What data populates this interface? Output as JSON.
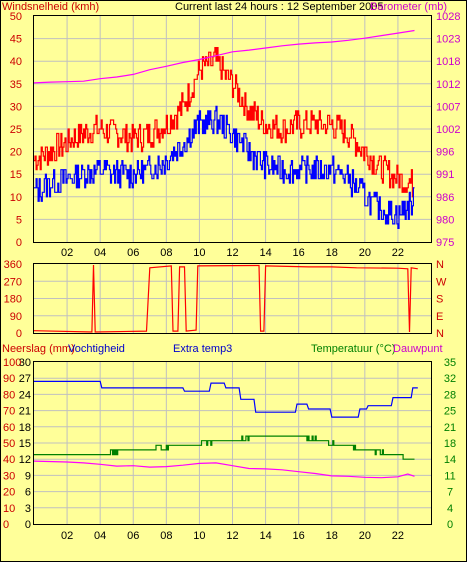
{
  "colors": {
    "background": "#ffff99",
    "gust": "#ff0000",
    "wind": "#0000ff",
    "barometer": "#ff00ff",
    "direction": "#ff0000",
    "humidity": "#0000ff",
    "temperature": "#008000",
    "dewpoint": "#ff00ff",
    "grid": "#c0c0c0",
    "temp_axis": "#008000",
    "right_axis_top": "#cc00cc",
    "right_axis_mid": "#cc0000"
  },
  "header": {
    "left_label": "Windsnelheid (kmh)",
    "center_label": "Current last 24 hours : 12 September 2005",
    "right_label": "Barometer (mb)"
  },
  "chart_data": [
    {
      "type": "line",
      "title": "Current last 24 hours : 12 September 2005",
      "ylabel": "Windsnelheid (kmh)",
      "y2label": "Barometer (mb)",
      "ylim": [
        0,
        50
      ],
      "y2lim": [
        975,
        1028
      ],
      "yticks": [
        "0",
        "5",
        "10",
        "15",
        "20",
        "25",
        "30",
        "35",
        "40",
        "45",
        "50"
      ],
      "y2ticks": [
        "975",
        "980",
        "986",
        "991",
        "996",
        "1002",
        "1007",
        "1012",
        "1018",
        "1023",
        "1028"
      ],
      "xticks": [
        "02",
        "04",
        "06",
        "08",
        "10",
        "12",
        "14",
        "16",
        "18",
        "20",
        "22"
      ],
      "grid": true,
      "series": [
        {
          "key": "gust",
          "points": [
            [
              0,
              18
            ],
            [
              1,
              20
            ],
            [
              2,
              22
            ],
            [
              3,
              24
            ],
            [
              4,
              25
            ],
            [
              5,
              24
            ],
            [
              6,
              23
            ],
            [
              7,
              24
            ],
            [
              8,
              26
            ],
            [
              9,
              30
            ],
            [
              10,
              38
            ],
            [
              11,
              40
            ],
            [
              12,
              35
            ],
            [
              13,
              29
            ],
            [
              14,
              26
            ],
            [
              15,
              25
            ],
            [
              16,
              26
            ],
            [
              17,
              26
            ],
            [
              18,
              26
            ],
            [
              19,
              24
            ],
            [
              20,
              20
            ],
            [
              21,
              16
            ],
            [
              22,
              14
            ],
            [
              23,
              13
            ]
          ]
        },
        {
          "key": "wind",
          "points": [
            [
              0,
              11
            ],
            [
              1,
              13
            ],
            [
              2,
              14
            ],
            [
              3,
              15
            ],
            [
              4,
              16
            ],
            [
              5,
              15
            ],
            [
              6,
              15
            ],
            [
              7,
              16
            ],
            [
              8,
              18
            ],
            [
              9,
              22
            ],
            [
              10,
              26
            ],
            [
              11,
              27
            ],
            [
              12,
              24
            ],
            [
              13,
              20
            ],
            [
              14,
              17
            ],
            [
              15,
              16
            ],
            [
              16,
              16
            ],
            [
              17,
              16
            ],
            [
              18,
              16
            ],
            [
              19,
              14
            ],
            [
              20,
              10
            ],
            [
              21,
              7
            ],
            [
              22,
              6
            ],
            [
              23,
              9
            ]
          ]
        },
        {
          "key": "barometer",
          "points": [
            [
              0,
              1012.3
            ],
            [
              1,
              1012.5
            ],
            [
              2,
              1012.6
            ],
            [
              3,
              1012.7
            ],
            [
              4,
              1013.3
            ],
            [
              5,
              1013.7
            ],
            [
              6,
              1014.3
            ],
            [
              7,
              1015.4
            ],
            [
              8,
              1016.2
            ],
            [
              9,
              1017.1
            ],
            [
              10,
              1017.8
            ],
            [
              11,
              1018.7
            ],
            [
              12,
              1019.6
            ],
            [
              13,
              1020.0
            ],
            [
              14,
              1020.5
            ],
            [
              15,
              1021.0
            ],
            [
              16,
              1021.4
            ],
            [
              17,
              1021.7
            ],
            [
              18,
              1021.9
            ],
            [
              19,
              1022.3
            ],
            [
              20,
              1022.8
            ],
            [
              21,
              1023.4
            ],
            [
              22,
              1024.0
            ],
            [
              23,
              1024.6
            ]
          ]
        }
      ]
    },
    {
      "type": "line",
      "ylim": [
        0,
        360
      ],
      "yticks": [
        "0",
        "90",
        "180",
        "270",
        "360"
      ],
      "y2ticks": [
        "N",
        "E",
        "S",
        "W",
        "N"
      ],
      "xticks": [
        "02",
        "04",
        "06",
        "08",
        "10",
        "12",
        "14",
        "16",
        "18",
        "20",
        "22"
      ],
      "grid": true,
      "series": [
        {
          "key": "direction",
          "points": [
            [
              0,
              12
            ],
            [
              3.5,
              5
            ],
            [
              3.6,
              355
            ],
            [
              3.7,
              5
            ],
            [
              6.8,
              10
            ],
            [
              7.0,
              340
            ],
            [
              8.3,
              350
            ],
            [
              8.4,
              10
            ],
            [
              8.7,
              10
            ],
            [
              8.8,
              345
            ],
            [
              9.1,
              345
            ],
            [
              9.2,
              10
            ],
            [
              9.8,
              15
            ],
            [
              9.9,
              350
            ],
            [
              13.6,
              352
            ],
            [
              13.7,
              10
            ],
            [
              13.9,
              10
            ],
            [
              14.0,
              350
            ],
            [
              16.6,
              345
            ],
            [
              18.0,
              345
            ],
            [
              19.5,
              340
            ],
            [
              22.0,
              338
            ],
            [
              22.6,
              335
            ],
            [
              22.7,
              5
            ],
            [
              22.8,
              340
            ],
            [
              23.2,
              335
            ]
          ]
        }
      ]
    },
    {
      "type": "line",
      "ylabel": "Neerslag (mm)",
      "labels": [
        "Neerslag (mm)",
        "Vochtigheid",
        "Extra temp3",
        "Temperatuur (°C)",
        "Dauwpunt"
      ],
      "ylim": [
        0,
        100
      ],
      "y2lim": [
        0,
        35
      ],
      "yticks_neerslag": [
        "0",
        "10",
        "20",
        "30",
        "40",
        "50",
        "60",
        "70",
        "80",
        "90",
        "100"
      ],
      "yticks_extra": [
        "0",
        "3",
        "6",
        "9",
        "12",
        "15",
        "18",
        "21",
        "24",
        "27",
        "30"
      ],
      "y2ticks": [
        "0",
        "4",
        "7",
        "11",
        "14",
        "18",
        "21",
        "25",
        "28",
        "32",
        "35"
      ],
      "xticks": [
        "02",
        "04",
        "06",
        "08",
        "10",
        "12",
        "14",
        "16",
        "18",
        "20",
        "22"
      ],
      "grid": true,
      "series": [
        {
          "key": "humidity",
          "points": [
            [
              0,
              88
            ],
            [
              4.0,
              88
            ],
            [
              4.1,
              84
            ],
            [
              9.0,
              84
            ],
            [
              9.1,
              82
            ],
            [
              10.6,
              82
            ],
            [
              10.7,
              87
            ],
            [
              11.5,
              87
            ],
            [
              11.6,
              84
            ],
            [
              12.4,
              84
            ],
            [
              12.5,
              77
            ],
            [
              13.3,
              77
            ],
            [
              13.4,
              69
            ],
            [
              15.8,
              69
            ],
            [
              15.9,
              74
            ],
            [
              16.5,
              74
            ],
            [
              16.6,
              71
            ],
            [
              17.9,
              71
            ],
            [
              18.0,
              66
            ],
            [
              19.6,
              66
            ],
            [
              19.7,
              71
            ],
            [
              20.1,
              71
            ],
            [
              20.2,
              73
            ],
            [
              21.6,
              73
            ],
            [
              21.7,
              78
            ],
            [
              22.8,
              78
            ],
            [
              22.9,
              84
            ],
            [
              23.2,
              84
            ]
          ]
        },
        {
          "key": "temperature",
          "points": [
            [
              0,
              15.3
            ],
            [
              1,
              15.2
            ],
            [
              2,
              15.1
            ],
            [
              3,
              15.3
            ],
            [
              4,
              15.2
            ],
            [
              5,
              15.6
            ],
            [
              6,
              16.0
            ],
            [
              7,
              16.3
            ],
            [
              8,
              16.6
            ],
            [
              9,
              17.0
            ],
            [
              10,
              17.4
            ],
            [
              11,
              17.8
            ],
            [
              12,
              18.2
            ],
            [
              13,
              18.5
            ],
            [
              14,
              18.9
            ],
            [
              15,
              19.3
            ],
            [
              16,
              19.0
            ],
            [
              17,
              18.3
            ],
            [
              18,
              17.4
            ],
            [
              19,
              16.7
            ],
            [
              20,
              16.0
            ],
            [
              21,
              15.4
            ],
            [
              22,
              14.8
            ],
            [
              23,
              13.8
            ]
          ]
        },
        {
          "key": "dewpoint",
          "points": [
            [
              0,
              13.6
            ],
            [
              2,
              13.4
            ],
            [
              3,
              13.2
            ],
            [
              4,
              12.9
            ],
            [
              5,
              12.5
            ],
            [
              6,
              12.6
            ],
            [
              7,
              12.3
            ],
            [
              8,
              12.4
            ],
            [
              9,
              12.7
            ],
            [
              10,
              13.1
            ],
            [
              11,
              13.2
            ],
            [
              12,
              12.6
            ],
            [
              13,
              12.0
            ],
            [
              14,
              11.9
            ],
            [
              15,
              11.7
            ],
            [
              16,
              11.3
            ],
            [
              17,
              10.9
            ],
            [
              18,
              10.4
            ],
            [
              19,
              10.3
            ],
            [
              20,
              10.1
            ],
            [
              21,
              10.0
            ],
            [
              22,
              10.2
            ],
            [
              22.6,
              10.8
            ],
            [
              23.0,
              10.3
            ]
          ]
        }
      ]
    }
  ]
}
